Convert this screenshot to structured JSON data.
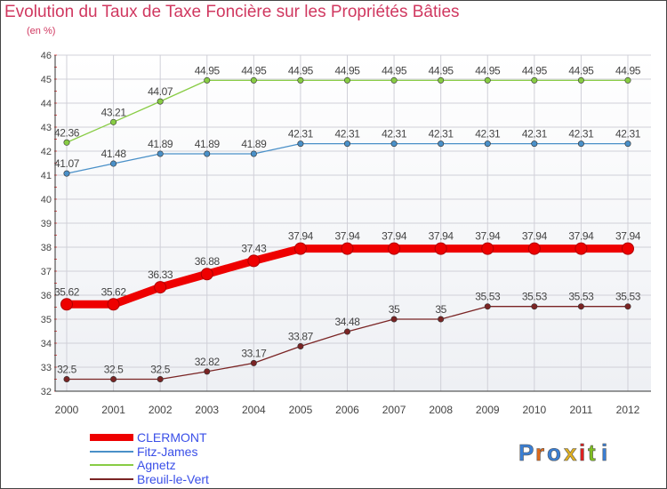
{
  "chart_data": {
    "type": "line",
    "title": "Evolution du Taux de Taxe Foncière sur les Propriétés Bâties",
    "subtitle": "(en %)",
    "xlabel": "",
    "ylabel": "",
    "ylim": [
      32,
      46
    ],
    "yticks": [
      32,
      33,
      34,
      35,
      36,
      37,
      38,
      39,
      40,
      41,
      42,
      43,
      44,
      45,
      46
    ],
    "grid": true,
    "legend_position": "bottom-left",
    "x": [
      "2000",
      "2001",
      "2002",
      "2003",
      "2004",
      "2005",
      "2006",
      "2007",
      "2008",
      "2009",
      "2010",
      "2011",
      "2012"
    ],
    "series": [
      {
        "name": "CLERMONT",
        "color": "#ee0000",
        "values": [
          35.62,
          35.62,
          36.33,
          36.88,
          37.43,
          37.94,
          37.94,
          37.94,
          37.94,
          37.94,
          37.94,
          37.94,
          37.94
        ],
        "labels": [
          "35.62",
          "35.62",
          "36.33",
          "36.88",
          "37.43",
          "37.94",
          "37.94",
          "37.94",
          "37.94",
          "37.94",
          "37.94",
          "37.94",
          "37.94"
        ]
      },
      {
        "name": "Fitz-James",
        "color": "#4a90c8",
        "values": [
          41.07,
          41.48,
          41.89,
          41.89,
          41.89,
          42.31,
          42.31,
          42.31,
          42.31,
          42.31,
          42.31,
          42.31,
          42.31
        ],
        "labels": [
          "41.07",
          "41.48",
          "41.89",
          "41.89",
          "41.89",
          "42.31",
          "42.31",
          "42.31",
          "42.31",
          "42.31",
          "42.31",
          "42.31",
          "42.31"
        ]
      },
      {
        "name": "Agnetz",
        "color": "#88cc44",
        "values": [
          42.36,
          43.21,
          44.07,
          44.95,
          44.95,
          44.95,
          44.95,
          44.95,
          44.95,
          44.95,
          44.95,
          44.95,
          44.95
        ],
        "labels": [
          "42.36",
          "43.21",
          "44.07",
          "44.95",
          "44.95",
          "44.95",
          "44.95",
          "44.95",
          "44.95",
          "44.95",
          "44.95",
          "44.95",
          "44.95"
        ]
      },
      {
        "name": "Breuil-le-Vert",
        "color": "#7a2424",
        "values": [
          32.5,
          32.5,
          32.5,
          32.82,
          33.17,
          33.87,
          34.48,
          35,
          35,
          35.53,
          35.53,
          35.53,
          35.53
        ],
        "labels": [
          "32.5",
          "32.5",
          "32.5",
          "32.82",
          "33.17",
          "33.87",
          "34.48",
          "35",
          "35",
          "35.53",
          "35.53",
          "35.53",
          "35.53"
        ]
      }
    ]
  },
  "logo": {
    "text": "Proxiti"
  }
}
